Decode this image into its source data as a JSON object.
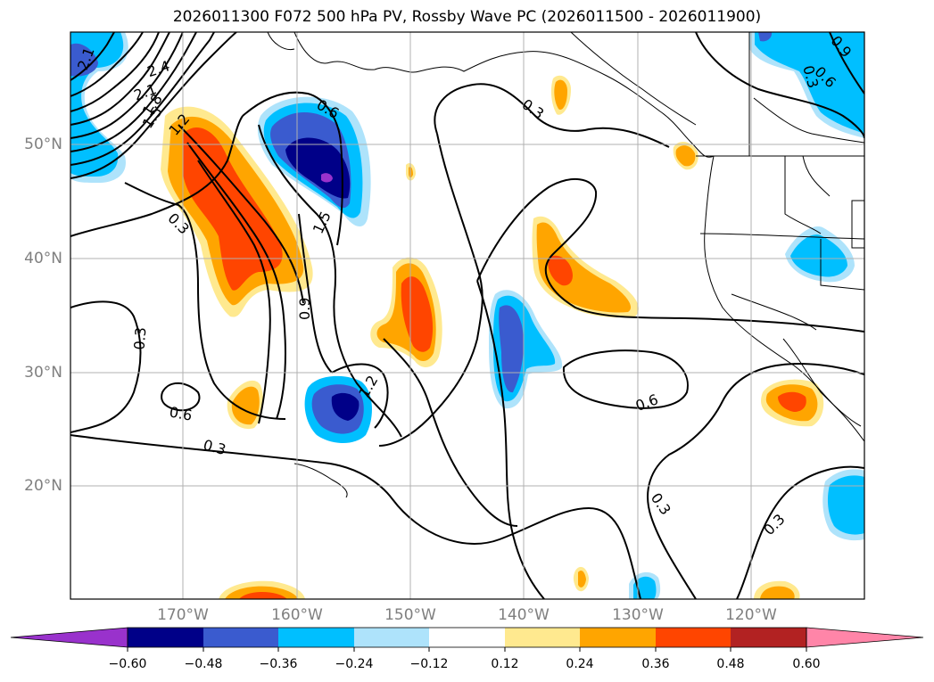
{
  "title": "2026011300 F072 500 hPa PV, Rossby Wave PC (2026011500 - 2026011900)",
  "lat_labels": [
    "50°N",
    "40°N",
    "30°N",
    "20°N"
  ],
  "lon_labels": [
    "170°W",
    "160°W",
    "150°W",
    "140°W",
    "130°W",
    "120°W"
  ],
  "contour_labels": [
    "2.4",
    "2.1",
    "1.8",
    "1.5",
    "1.2",
    "2.1",
    "0.6",
    "0.3",
    "1.5",
    "0.9",
    "1.2",
    "0.3",
    "0.6",
    "0.3",
    "0.3",
    "0.6",
    "0.3",
    "0.3",
    "0.3",
    "0.6",
    "0.9"
  ],
  "colorbar": {
    "tick_labels": [
      "−0.60",
      "−0.48",
      "−0.36",
      "−0.24",
      "−0.12",
      "0.12",
      "0.24",
      "0.36",
      "0.48",
      "0.60"
    ],
    "colors": {
      "under": "#9932CC",
      "b1": "#000088",
      "b2": "#3a5bcf",
      "b3": "#00bfff",
      "b4": "#aee3fb",
      "zero": "#ffffff",
      "r1": "#ffe98f",
      "r2": "#ffa500",
      "r3": "#ff4500",
      "r4": "#b22222",
      "over": "#ff85a8"
    }
  },
  "colors": {
    "grid": "#b0b0b0",
    "contour": "#000000"
  }
}
